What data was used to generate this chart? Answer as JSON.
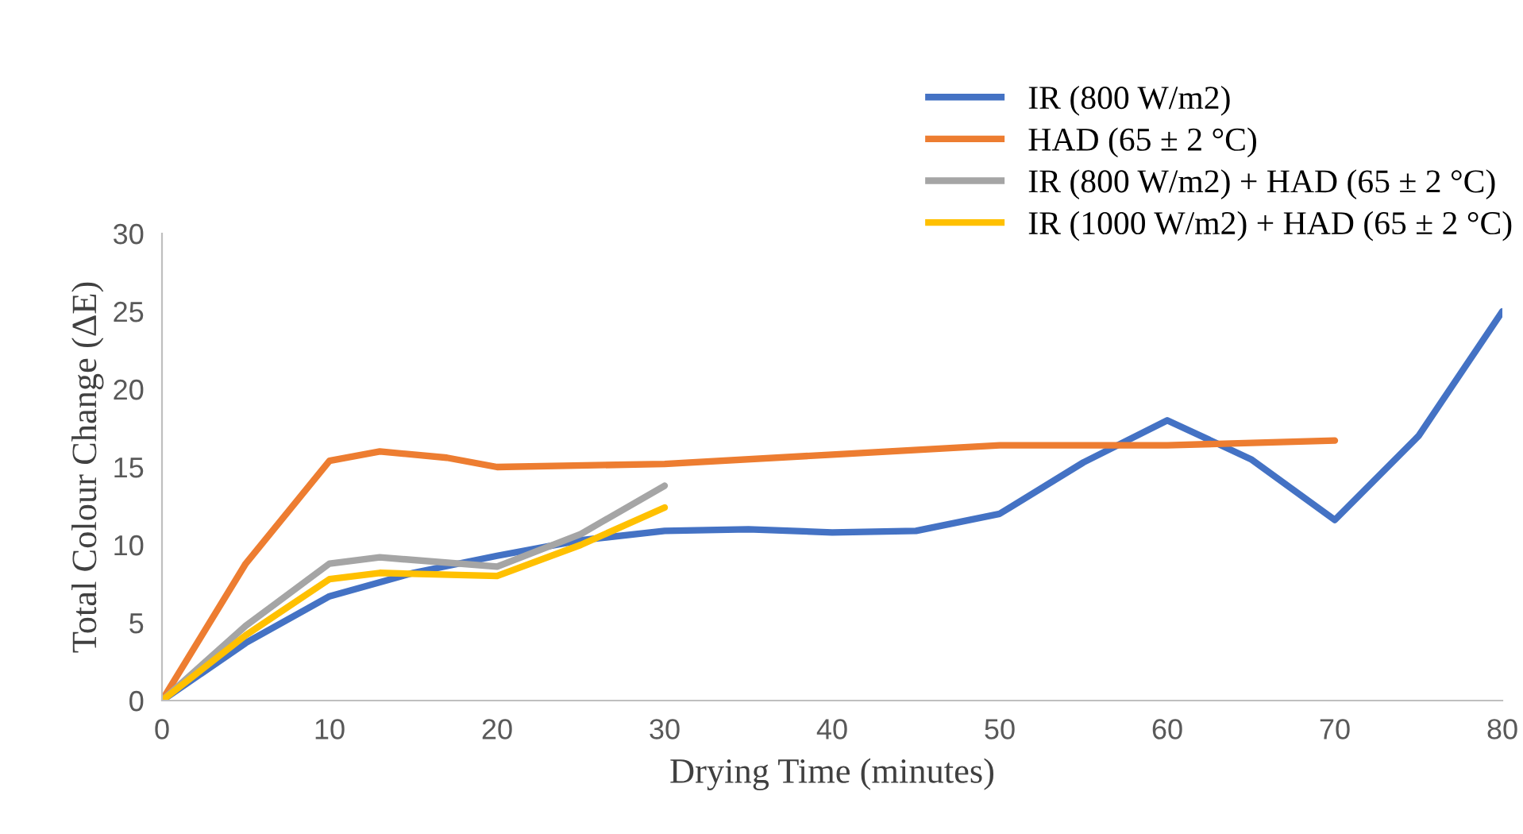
{
  "chart_data": {
    "type": "line",
    "xlabel": "Drying Time (minutes)",
    "ylabel": "Total Colour Change (ΔE)",
    "xlim": [
      0,
      80
    ],
    "xticks": [
      0,
      10,
      20,
      30,
      40,
      50,
      60,
      70,
      80
    ],
    "ylim": [
      0,
      30
    ],
    "yticks": [
      0,
      5,
      10,
      15,
      20,
      25,
      30
    ],
    "grid": false,
    "legend": "top right",
    "marker": "none",
    "line_style": "solid",
    "series": [
      {
        "name": "IR (800 W/m2)",
        "color": "#4472c4",
        "x": [
          0,
          5,
          10,
          15,
          20,
          25,
          30,
          35,
          40,
          45,
          50,
          55,
          60,
          65,
          70,
          75,
          80
        ],
        "values": [
          0,
          3.7,
          6.7,
          8.2,
          9.3,
          10.3,
          10.9,
          11,
          10.8,
          10.9,
          12,
          15.3,
          18,
          15.5,
          11.6,
          17,
          25
        ]
      },
      {
        "name": "HAD (65 ± 2 °C)",
        "color": "#ed7d31",
        "x": [
          0,
          5,
          10,
          13,
          17,
          20,
          30,
          40,
          50,
          60,
          70
        ],
        "values": [
          0,
          8.8,
          15.4,
          16,
          15.6,
          15,
          15.2,
          15.8,
          16.4,
          16.4,
          16.7
        ]
      },
      {
        "name": "IR (800 W/m2) + HAD (65 ± 2 °C)",
        "color": "#a5a5a5",
        "x": [
          0,
          5,
          10,
          13,
          20,
          25,
          30
        ],
        "values": [
          0,
          4.8,
          8.8,
          9.2,
          8.6,
          10.7,
          13.8
        ]
      },
      {
        "name": "IR (1000 W/m2) + HAD (65 ± 2 °C)",
        "color": "#ffc000",
        "x": [
          0,
          5,
          10,
          13,
          20,
          25,
          30
        ],
        "values": [
          0,
          4.2,
          7.8,
          8.2,
          8,
          10,
          12.4
        ]
      }
    ]
  }
}
